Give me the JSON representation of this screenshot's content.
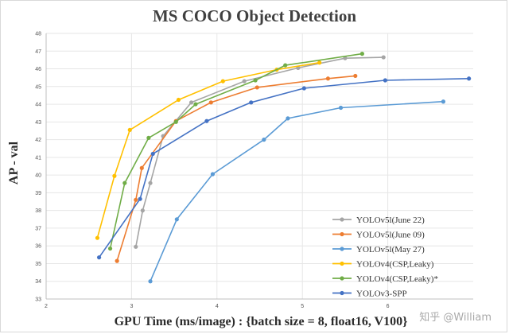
{
  "chart_data": {
    "type": "line",
    "title": "MS COCO Object Detection",
    "xlabel": "GPU Time (ms/image) : {batch size = 8, float16, V100}",
    "ylabel": "AP - val",
    "xlim": [
      2,
      7
    ],
    "ylim": [
      33,
      48
    ],
    "xticks": [
      2,
      3,
      4,
      5,
      6
    ],
    "yticks": [
      33,
      34,
      35,
      36,
      37,
      38,
      39,
      40,
      41,
      42,
      43,
      44,
      45,
      46,
      47,
      48
    ],
    "grid": true,
    "legend_position": "bottom-right",
    "series": [
      {
        "name": "YOLOv5l(June 22)",
        "color": "#a5a5a5",
        "x": [
          3.05,
          3.13,
          3.22,
          3.37,
          3.7,
          4.32,
          4.95,
          5.5,
          5.95
        ],
        "y": [
          35.95,
          38.0,
          39.55,
          42.2,
          44.1,
          45.3,
          46.05,
          46.6,
          46.65
        ]
      },
      {
        "name": "YOLOv5l(June 09)",
        "color": "#ed7d31",
        "x": [
          2.83,
          3.05,
          3.12,
          3.52,
          3.93,
          4.47,
          5.3,
          5.62
        ],
        "y": [
          35.15,
          38.6,
          40.4,
          43.05,
          44.1,
          44.95,
          45.45,
          45.6
        ]
      },
      {
        "name": "YOLOv5l(May 27)",
        "color": "#5b9bd5",
        "x": [
          3.22,
          3.53,
          3.95,
          4.55,
          4.83,
          5.45,
          6.65
        ],
        "y": [
          34.0,
          37.5,
          40.05,
          42.0,
          43.2,
          43.8,
          44.15
        ]
      },
      {
        "name": "YOLOv4(CSP,Leaky)",
        "color": "#ffc000",
        "x": [
          2.6,
          2.8,
          2.98,
          3.55,
          4.07,
          4.7,
          5.2
        ],
        "y": [
          36.45,
          39.95,
          42.55,
          44.25,
          45.3,
          45.95,
          46.35
        ]
      },
      {
        "name": "YOLOv4(CSP,Leaky)*",
        "color": "#70ad47",
        "x": [
          2.75,
          2.92,
          3.2,
          3.52,
          3.75,
          4.45,
          4.8,
          5.7
        ],
        "y": [
          35.85,
          39.55,
          42.1,
          43.0,
          44.0,
          45.35,
          46.2,
          46.85
        ]
      },
      {
        "name": "YOLOv3-SPP",
        "color": "#4472c4",
        "x": [
          2.62,
          3.1,
          3.25,
          3.88,
          4.4,
          5.02,
          5.97,
          6.95
        ],
        "y": [
          35.35,
          38.65,
          41.2,
          43.05,
          44.1,
          44.9,
          45.35,
          45.45
        ]
      }
    ]
  },
  "watermark": "知乎 @William"
}
